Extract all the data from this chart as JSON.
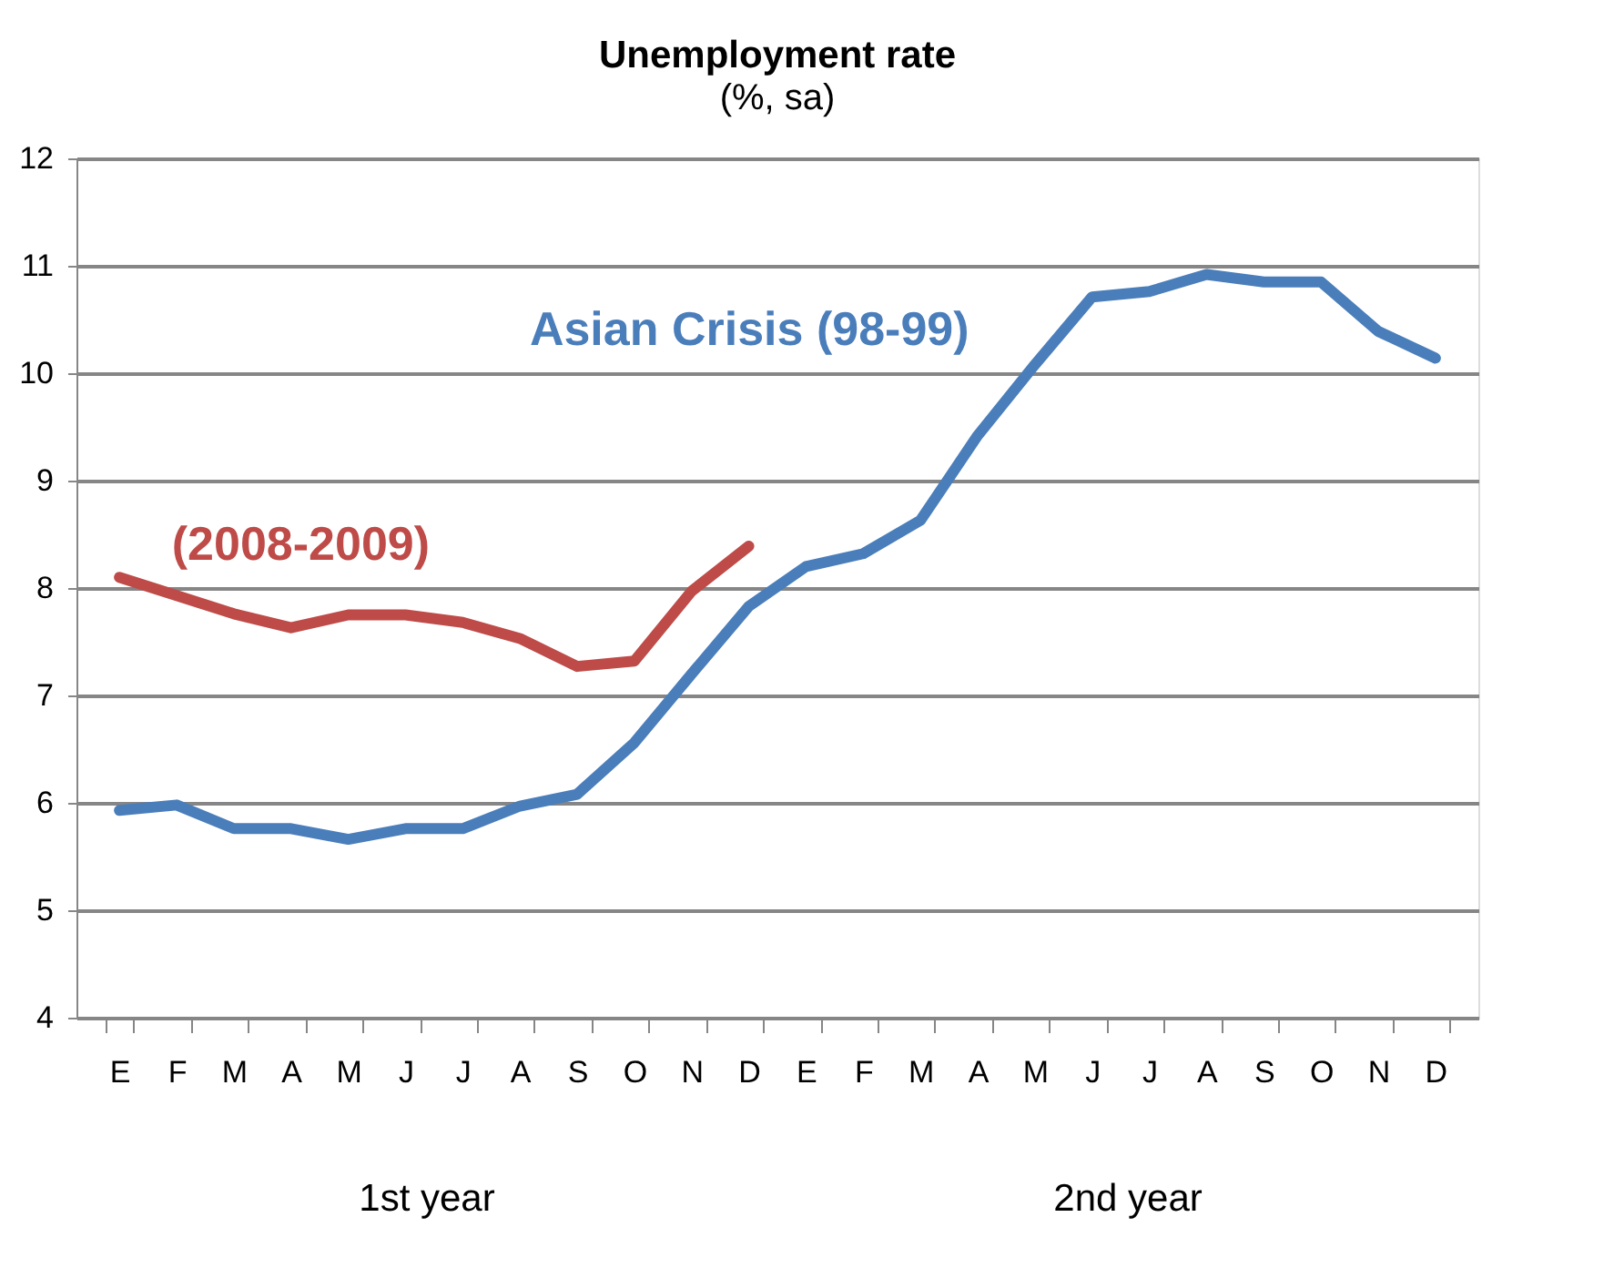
{
  "chart_data": {
    "type": "line",
    "title": "Unemployment rate",
    "subtitle": "(%, sa)",
    "categories": [
      "E",
      "F",
      "M",
      "A",
      "M",
      "J",
      "J",
      "A",
      "S",
      "O",
      "N",
      "D",
      "E",
      "F",
      "M",
      "A",
      "M",
      "J",
      "J",
      "A",
      "S",
      "O",
      "N",
      "D"
    ],
    "series": [
      {
        "name": "Asian Crisis (98-99)",
        "color": "#4a7ebb",
        "values": [
          5.93,
          5.98,
          5.76,
          5.76,
          5.66,
          5.76,
          5.76,
          5.97,
          6.08,
          6.56,
          7.2,
          7.83,
          8.2,
          8.32,
          8.63,
          9.42,
          10.08,
          10.71,
          10.76,
          10.92,
          10.85,
          10.85,
          10.39,
          10.14
        ]
      },
      {
        "name": "(2008-2009)",
        "color": "#be4b48",
        "values": [
          8.1,
          7.93,
          7.76,
          7.63,
          7.75,
          7.75,
          7.68,
          7.53,
          7.27,
          7.32,
          7.97,
          8.39,
          null,
          null,
          null,
          null,
          null,
          null,
          null,
          null,
          null,
          null,
          null,
          null
        ]
      }
    ],
    "ylim": [
      4,
      12
    ],
    "yticks": [
      4,
      5,
      6,
      7,
      8,
      9,
      10,
      11,
      12
    ],
    "grid": "y",
    "legend": false,
    "marker": "none",
    "line_style": "solid",
    "annotations": [
      "1st  year",
      "2nd  year"
    ]
  }
}
